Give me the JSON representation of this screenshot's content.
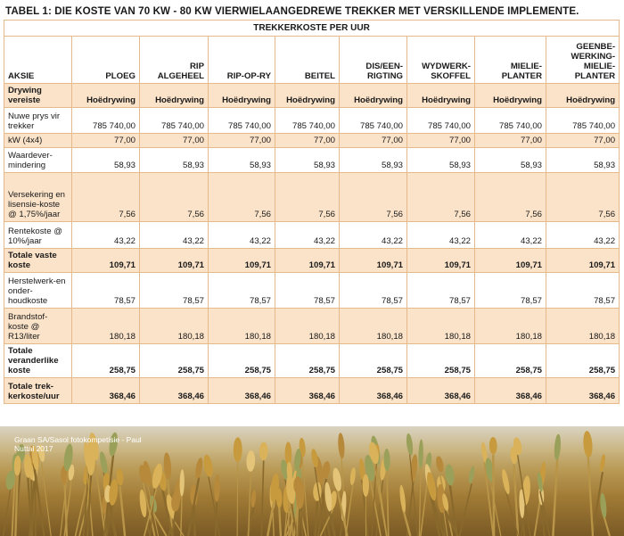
{
  "title": "TABEL 1: DIE KOSTE VAN 70 KW - 80 KW VIERWIELAANGEDREWE TREKKER MET VERSKILLENDE IMPLEMENTE.",
  "band": "TREKKERKOSTE PER UUR",
  "headers": [
    "AKSIE",
    "PLOEG",
    "RIP ALGEHEEL",
    "RIP-OP-RY",
    "BEITEL",
    "DIS/EEN-RIGTING",
    "WYDWERK-SKOFFEL",
    "MIELIE-PLANTER",
    "GEENBE-WERKING-MIELIE-PLANTER"
  ],
  "rows": [
    {
      "label": "Drywing vereiste",
      "values": [
        "Hoëdrywing",
        "Hoëdrywing",
        "Hoëdrywing",
        "Hoëdrywing",
        "Hoëdrywing",
        "Hoëdrywing",
        "Hoëdrywing",
        "Hoëdrywing"
      ]
    },
    {
      "label": "Nuwe prys vir trekker",
      "values": [
        "785 740,00",
        "785 740,00",
        "785 740,00",
        "785 740,00",
        "785 740,00",
        "785 740,00",
        "785 740,00",
        "785 740,00"
      ]
    },
    {
      "label": "kW (4x4)",
      "values": [
        "77,00",
        "77,00",
        "77,00",
        "77,00",
        "77,00",
        "77,00",
        "77,00",
        "77,00"
      ]
    },
    {
      "label": "Waardever-mindering",
      "values": [
        "58,93",
        "58,93",
        "58,93",
        "58,93",
        "58,93",
        "58,93",
        "58,93",
        "58,93"
      ]
    },
    {
      "label": "Versekering en lisensie-koste @ 1,75%/jaar",
      "values": [
        "7,56",
        "7,56",
        "7,56",
        "7,56",
        "7,56",
        "7,56",
        "7,56",
        "7,56"
      ]
    },
    {
      "label": "Rentekoste @ 10%/jaar",
      "values": [
        "43,22",
        "43,22",
        "43,22",
        "43,22",
        "43,22",
        "43,22",
        "43,22",
        "43,22"
      ]
    },
    {
      "label": "Totale vaste koste",
      "values": [
        "109,71",
        "109,71",
        "109,71",
        "109,71",
        "109,71",
        "109,71",
        "109,71",
        "109,71"
      ]
    },
    {
      "label": "Herstelwerk-en onder-houdkoste",
      "values": [
        "78,57",
        "78,57",
        "78,57",
        "78,57",
        "78,57",
        "78,57",
        "78,57",
        "78,57"
      ]
    },
    {
      "label": "Brandstof-koste @ R13/liter",
      "values": [
        "180,18",
        "180,18",
        "180,18",
        "180,18",
        "180,18",
        "180,18",
        "180,18",
        "180,18"
      ]
    },
    {
      "label": "Totale veranderlike koste",
      "values": [
        "258,75",
        "258,75",
        "258,75",
        "258,75",
        "258,75",
        "258,75",
        "258,75",
        "258,75"
      ]
    },
    {
      "label": "Totale trek-kerkoste/uur",
      "values": [
        "368,46",
        "368,46",
        "368,46",
        "368,46",
        "368,46",
        "368,46",
        "368,46",
        "368,46"
      ]
    }
  ],
  "photo_credit": "Graan SA/Sasol fotokompetisie - Paul Nuttal 2017"
}
